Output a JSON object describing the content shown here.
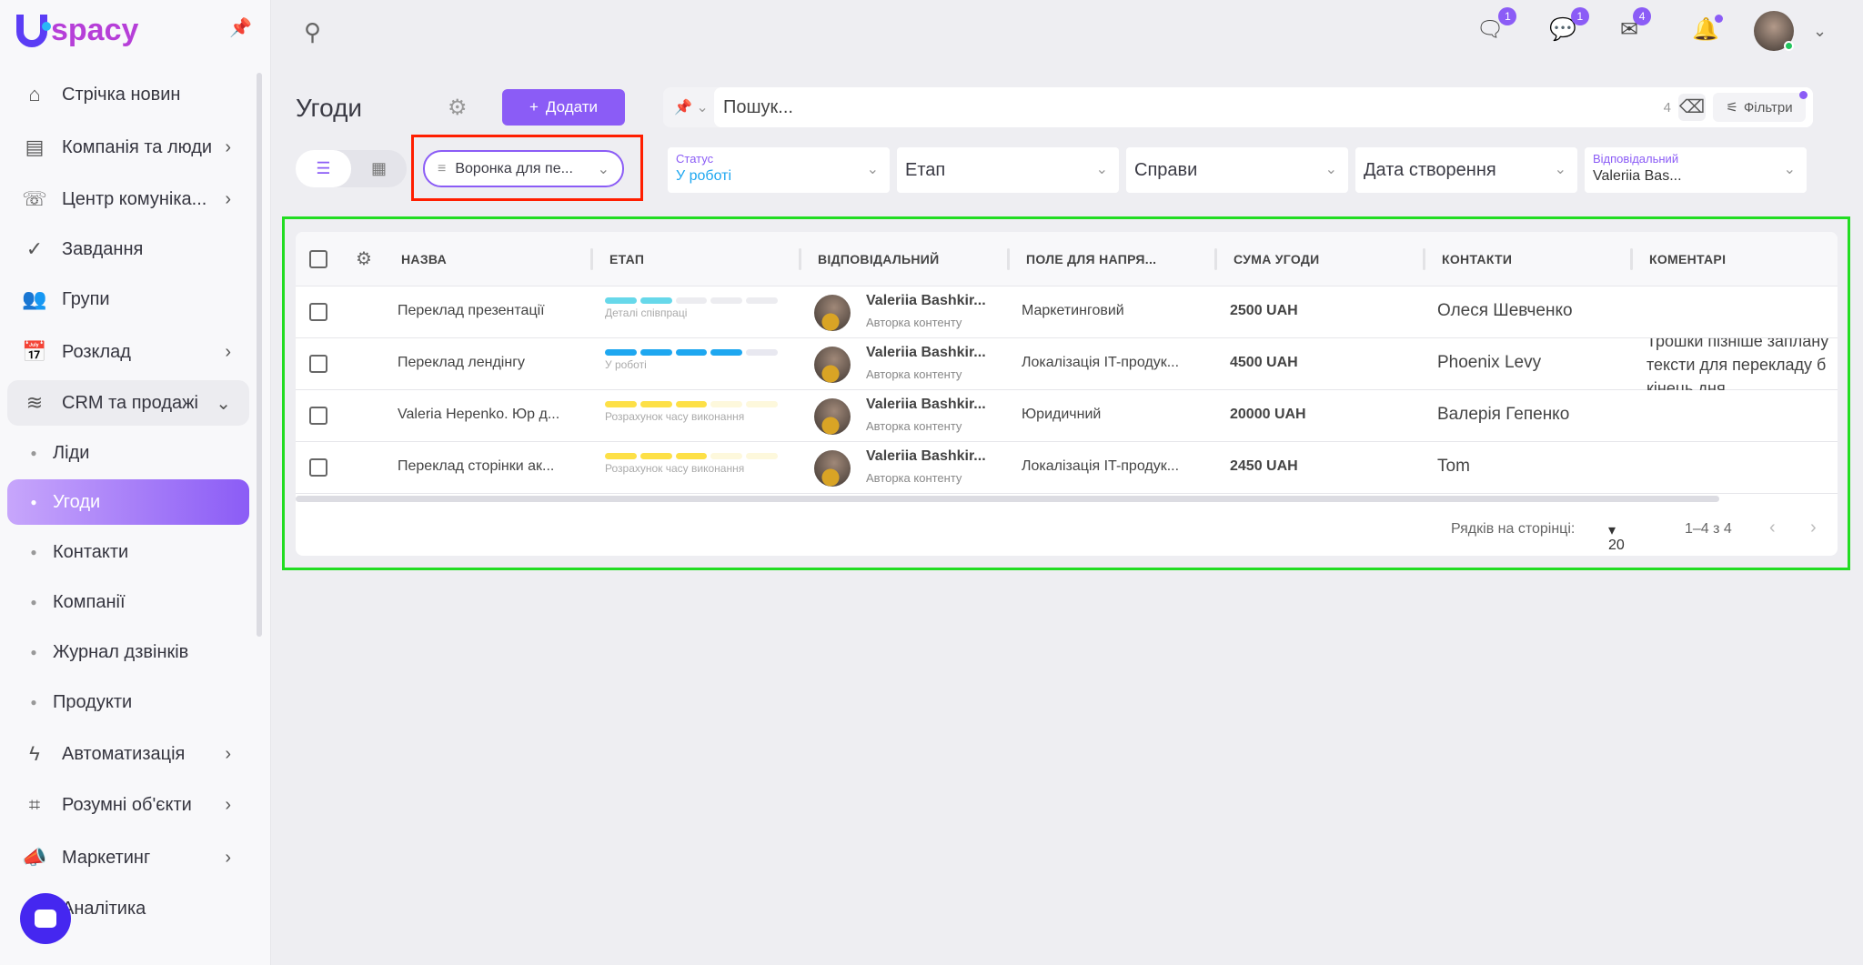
{
  "brand": {
    "logo_text": "spacy"
  },
  "sidebar": {
    "items": [
      {
        "label": "Стрічка новин",
        "icon": "home-icon",
        "chevron": false
      },
      {
        "label": "Компанія та люди",
        "icon": "building-icon",
        "chevron": true
      },
      {
        "label": "Центр комуніка...",
        "icon": "phone-chat-icon",
        "chevron": true
      },
      {
        "label": "Завдання",
        "icon": "check-circle-icon",
        "chevron": false
      },
      {
        "label": "Групи",
        "icon": "users-icon",
        "chevron": false
      },
      {
        "label": "Розклад",
        "icon": "calendar-icon",
        "chevron": true
      },
      {
        "label": "CRM та продажі",
        "icon": "database-icon",
        "chevron": "down"
      },
      {
        "label": "Ліди",
        "sub": true
      },
      {
        "label": "Угоди",
        "sub": true,
        "active": true
      },
      {
        "label": "Контакти",
        "sub": true
      },
      {
        "label": "Компанії",
        "sub": true
      },
      {
        "label": "Журнал дзвінків",
        "sub": true
      },
      {
        "label": "Продукти",
        "sub": true
      },
      {
        "label": "Автоматизація",
        "icon": "lightning-icon",
        "chevron": true
      },
      {
        "label": "Розумні об'єкти",
        "icon": "scan-icon",
        "chevron": true
      },
      {
        "label": "Маркетинг",
        "icon": "megaphone-icon",
        "chevron": true
      },
      {
        "label": "Аналітика",
        "icon": "chart-icon",
        "chevron": false
      }
    ]
  },
  "topbar": {
    "badges": {
      "chat": "1",
      "messenger": "1",
      "mail": "4"
    }
  },
  "page": {
    "title": "Угоди",
    "add_label": "Додати",
    "search_placeholder": "Пошук...",
    "search_count": "4",
    "filters_label": "Фільтри",
    "funnel": "Воронка для пе..."
  },
  "filters": [
    {
      "label": "Статус",
      "value": "У роботі"
    },
    {
      "label": "",
      "value": "Етап"
    },
    {
      "label": "",
      "value": "Справи"
    },
    {
      "label": "",
      "value": "Дата створення"
    },
    {
      "label": "Відповідальний",
      "value": "Valeriia Bas..."
    }
  ],
  "table": {
    "columns": [
      "НАЗВА",
      "ЕТАП",
      "ВІДПОВІДАЛЬНИЙ",
      "ПОЛЕ ДЛЯ НАПРЯ...",
      "СУМА УГОДИ",
      "КОНТАКТИ",
      "КОМЕНТАРІ"
    ],
    "rows": [
      {
        "name": "Переклад презентації",
        "stage": "Деталі співпраці",
        "stage_filled": 2,
        "stage_color": "#67d8ea",
        "stage_empty": "#ececf0",
        "owner": "Valeriia Bashkir...",
        "role": "Авторка контенту",
        "field": "Маркетинговий",
        "sum": "2500 UAH",
        "contact": "Олеся Шевченко",
        "comment": ""
      },
      {
        "name": "Переклад лендінгу",
        "stage": "У роботі",
        "stage_filled": 4,
        "stage_color": "#1ea7f0",
        "stage_empty": "#e8e8f0",
        "owner": "Valeriia Bashkir...",
        "role": "Авторка контенту",
        "field": "Локалізація IT-продук...",
        "sum": "4500 UAH",
        "contact": "Phoenix Levy",
        "comment": "Трошки пізніше заплану\nтексти для перекладу б\nкінець дня"
      },
      {
        "name": "Valeria Hepenko. Юр д...",
        "stage": "Розрахунок часу виконання",
        "stage_filled": 3,
        "stage_color": "#fde047",
        "stage_empty": "#fdf8dc",
        "owner": "Valeriia Bashkir...",
        "role": "Авторка контенту",
        "field": "Юридичний",
        "sum": "20000 UAH",
        "contact": "Валерія Гепенко",
        "comment": ""
      },
      {
        "name": "Переклад сторінки ак...",
        "stage": "Розрахунок часу виконання",
        "stage_filled": 3,
        "stage_color": "#fde047",
        "stage_empty": "#fdf8dc",
        "owner": "Valeriia Bashkir...",
        "role": "Авторка контенту",
        "field": "Локалізація IT-продук...",
        "sum": "2450 UAH",
        "contact": "Tom",
        "comment": ""
      }
    ],
    "rows_per_page_label": "Рядків на сторінці:",
    "rows_per_page": "20",
    "range": "1–4 з 4"
  },
  "colors": {
    "accent": "#8b5cf6",
    "highlight_red": "#ff1e00",
    "highlight_green": "#22dd22"
  }
}
